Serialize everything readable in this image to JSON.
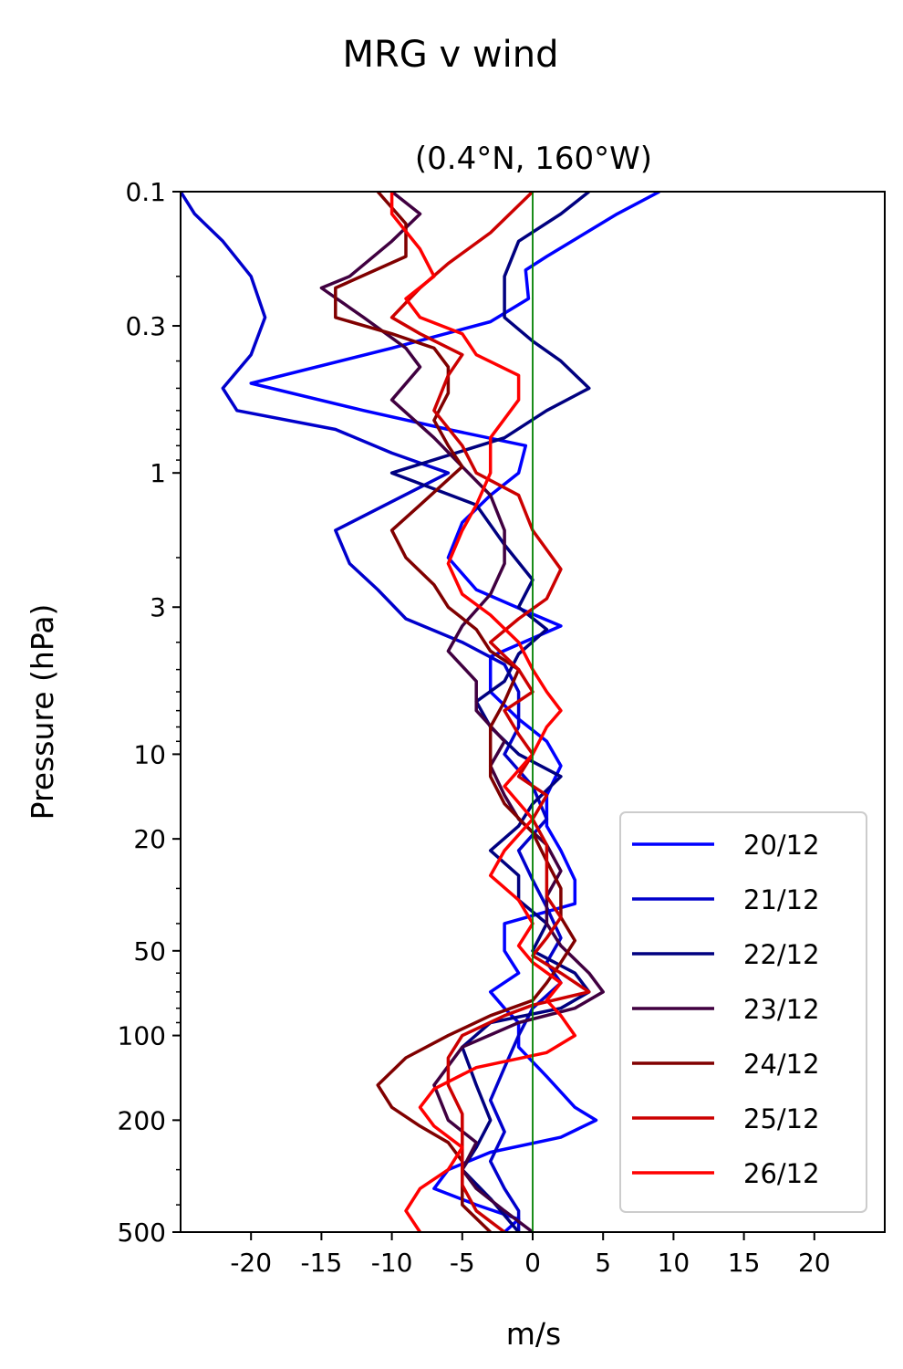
{
  "chart_data": {
    "type": "line",
    "title": "MRG v wind",
    "subtitle": "(0.4°N, 160°W)",
    "xlabel": "m/s",
    "ylabel": "Pressure (hPa)",
    "xlim": [
      -25,
      25
    ],
    "ylim": [
      500,
      0.1
    ],
    "yscale": "log",
    "x_ticks": [
      {
        "value": -20,
        "label": "-20"
      },
      {
        "value": -15,
        "label": "-15"
      },
      {
        "value": -10,
        "label": "-10"
      },
      {
        "value": -5,
        "label": "-5"
      },
      {
        "value": 0,
        "label": "0"
      },
      {
        "value": 5,
        "label": "5"
      },
      {
        "value": 10,
        "label": "10"
      },
      {
        "value": 15,
        "label": "15"
      },
      {
        "value": 20,
        "label": "20"
      }
    ],
    "y_ticks": [
      {
        "value": 0.1,
        "label": "0.1"
      },
      {
        "value": 0.3,
        "label": "0.3"
      },
      {
        "value": 1,
        "label": "1"
      },
      {
        "value": 3,
        "label": "3"
      },
      {
        "value": 10,
        "label": "10"
      },
      {
        "value": 20,
        "label": "20"
      },
      {
        "value": 50,
        "label": "50"
      },
      {
        "value": 100,
        "label": "100"
      },
      {
        "value": 200,
        "label": "200"
      },
      {
        "value": 500,
        "label": "500"
      }
    ],
    "zero_line": {
      "x": 0,
      "color": "#008000"
    },
    "legend_position": "bottom-right",
    "series": [
      {
        "name": "20/12",
        "color": "#0000ff",
        "points": [
          [
            9,
            0.1
          ],
          [
            6,
            0.12
          ],
          [
            1,
            0.17
          ],
          [
            -0.5,
            0.19
          ],
          [
            -0.3,
            0.24
          ],
          [
            -3,
            0.29
          ],
          [
            -10,
            0.36
          ],
          [
            -20,
            0.48
          ],
          [
            -12,
            0.6
          ],
          [
            -6,
            0.7
          ],
          [
            -0.5,
            0.8
          ],
          [
            -1,
            1.0
          ],
          [
            -3,
            1.2
          ],
          [
            -5,
            1.5
          ],
          [
            -6,
            2.0
          ],
          [
            -4,
            2.6
          ],
          [
            -0.5,
            3.1
          ],
          [
            2,
            3.5
          ],
          [
            -3,
            4.5
          ],
          [
            -3,
            6.0
          ],
          [
            -1,
            7.5
          ],
          [
            1,
            9.0
          ],
          [
            2,
            11
          ],
          [
            1,
            14
          ],
          [
            1,
            18
          ],
          [
            2,
            22
          ],
          [
            3,
            28
          ],
          [
            3,
            34
          ],
          [
            -2,
            40
          ],
          [
            -2,
            50
          ],
          [
            -1,
            60
          ],
          [
            -3,
            70
          ],
          [
            -2,
            80
          ],
          [
            -1,
            90
          ],
          [
            -1,
            110
          ],
          [
            1,
            140
          ],
          [
            3,
            180
          ],
          [
            4.5,
            200
          ],
          [
            2,
            230
          ],
          [
            -3,
            260
          ],
          [
            -6,
            300
          ],
          [
            -7,
            350
          ],
          [
            -4,
            400
          ],
          [
            -1,
            450
          ],
          [
            -2,
            500
          ]
        ]
      },
      {
        "name": "21/12",
        "color": "#0000cc",
        "points": [
          [
            -25,
            0.1
          ],
          [
            -24,
            0.12
          ],
          [
            -22,
            0.15
          ],
          [
            -20,
            0.2
          ],
          [
            -19,
            0.28
          ],
          [
            -20,
            0.38
          ],
          [
            -22,
            0.5
          ],
          [
            -21,
            0.6
          ],
          [
            -14,
            0.7
          ],
          [
            -10,
            0.85
          ],
          [
            -6,
            1.0
          ],
          [
            -14,
            1.6
          ],
          [
            -13,
            2.1
          ],
          [
            -11,
            2.6
          ],
          [
            -9,
            3.3
          ],
          [
            -5,
            4.0
          ],
          [
            -2,
            4.8
          ],
          [
            -1,
            6
          ],
          [
            -1,
            8
          ],
          [
            -2,
            10
          ],
          [
            0,
            13
          ],
          [
            1,
            17
          ],
          [
            -1,
            22
          ],
          [
            0,
            28
          ],
          [
            1,
            35
          ],
          [
            2,
            45
          ],
          [
            1,
            55
          ],
          [
            2,
            65
          ],
          [
            0,
            80
          ],
          [
            -1,
            100
          ],
          [
            -2,
            130
          ],
          [
            -3,
            170
          ],
          [
            -2,
            220
          ],
          [
            -3,
            280
          ],
          [
            -2,
            350
          ],
          [
            -1,
            420
          ],
          [
            -1,
            500
          ]
        ]
      },
      {
        "name": "22/12",
        "color": "#000080",
        "points": [
          [
            4,
            0.1
          ],
          [
            2,
            0.12
          ],
          [
            -1,
            0.15
          ],
          [
            -2,
            0.2
          ],
          [
            -2,
            0.28
          ],
          [
            0,
            0.34
          ],
          [
            2,
            0.4
          ],
          [
            4,
            0.5
          ],
          [
            1,
            0.6
          ],
          [
            -2,
            0.75
          ],
          [
            -10,
            1.0
          ],
          [
            -4,
            1.3
          ],
          [
            -2,
            1.8
          ],
          [
            0,
            2.4
          ],
          [
            -1,
            3.0
          ],
          [
            1,
            3.6
          ],
          [
            -1,
            4.4
          ],
          [
            -2,
            5.5
          ],
          [
            -4,
            6.5
          ],
          [
            -3,
            8
          ],
          [
            -1,
            10
          ],
          [
            2,
            12
          ],
          [
            0,
            15
          ],
          [
            -1,
            18
          ],
          [
            -3,
            22
          ],
          [
            -1,
            27
          ],
          [
            -1,
            33
          ],
          [
            1,
            40
          ],
          [
            0,
            50
          ],
          [
            3,
            60
          ],
          [
            4,
            70
          ],
          [
            2,
            80
          ],
          [
            -3,
            90
          ],
          [
            -5,
            110
          ],
          [
            -4,
            150
          ],
          [
            -3,
            200
          ],
          [
            -4,
            250
          ],
          [
            -5,
            300
          ],
          [
            -3,
            380
          ],
          [
            -1,
            500
          ]
        ]
      },
      {
        "name": "23/12",
        "color": "#400040",
        "points": [
          [
            -10,
            0.1
          ],
          [
            -8,
            0.12
          ],
          [
            -10,
            0.15
          ],
          [
            -13,
            0.2
          ],
          [
            -15,
            0.22
          ],
          [
            -12,
            0.28
          ],
          [
            -9,
            0.36
          ],
          [
            -8,
            0.42
          ],
          [
            -10,
            0.55
          ],
          [
            -7,
            0.75
          ],
          [
            -5,
            0.95
          ],
          [
            -3,
            1.2
          ],
          [
            -2,
            1.6
          ],
          [
            -2,
            2.1
          ],
          [
            -3,
            2.7
          ],
          [
            -5,
            3.5
          ],
          [
            -6,
            4.3
          ],
          [
            -4,
            5.5
          ],
          [
            -4,
            7
          ],
          [
            -2,
            9
          ],
          [
            -3,
            11
          ],
          [
            -2,
            14
          ],
          [
            -1,
            17
          ],
          [
            1,
            21
          ],
          [
            2,
            26
          ],
          [
            1,
            32
          ],
          [
            1,
            40
          ],
          [
            2,
            48
          ],
          [
            4,
            60
          ],
          [
            5,
            70
          ],
          [
            3,
            80
          ],
          [
            -1,
            90
          ],
          [
            -5,
            110
          ],
          [
            -7,
            150
          ],
          [
            -6,
            200
          ],
          [
            -4,
            240
          ],
          [
            -5,
            300
          ],
          [
            -4,
            350
          ],
          [
            -2,
            420
          ],
          [
            0,
            500
          ]
        ]
      },
      {
        "name": "24/12",
        "color": "#800000",
        "points": [
          [
            -11,
            0.1
          ],
          [
            -9,
            0.13
          ],
          [
            -9,
            0.17
          ],
          [
            -14,
            0.22
          ],
          [
            -14,
            0.28
          ],
          [
            -10,
            0.32
          ],
          [
            -7,
            0.36
          ],
          [
            -6,
            0.42
          ],
          [
            -6,
            0.52
          ],
          [
            -7,
            0.65
          ],
          [
            -6,
            0.8
          ],
          [
            -5,
            0.95
          ],
          [
            -8,
            1.3
          ],
          [
            -10,
            1.6
          ],
          [
            -9,
            2.0
          ],
          [
            -7,
            2.5
          ],
          [
            -6,
            3.0
          ],
          [
            -4,
            3.6
          ],
          [
            -3,
            4.3
          ],
          [
            -1,
            5
          ],
          [
            -2,
            6.5
          ],
          [
            -3,
            8
          ],
          [
            -3,
            10
          ],
          [
            -3,
            12
          ],
          [
            -2,
            15
          ],
          [
            0,
            19
          ],
          [
            1,
            24
          ],
          [
            2,
            30
          ],
          [
            2,
            38
          ],
          [
            3,
            46
          ],
          [
            2,
            55
          ],
          [
            1,
            65
          ],
          [
            0,
            75
          ],
          [
            -3,
            85
          ],
          [
            -6,
            100
          ],
          [
            -9,
            120
          ],
          [
            -11,
            150
          ],
          [
            -10,
            180
          ],
          [
            -8,
            210
          ],
          [
            -6,
            240
          ],
          [
            -5,
            280
          ],
          [
            -5,
            330
          ],
          [
            -5,
            400
          ],
          [
            -3,
            500
          ]
        ]
      },
      {
        "name": "25/12",
        "color": "#cc0000",
        "points": [
          [
            0,
            0.1
          ],
          [
            -3,
            0.14
          ],
          [
            -6,
            0.18
          ],
          [
            -8,
            0.22
          ],
          [
            -10,
            0.28
          ],
          [
            -8,
            0.32
          ],
          [
            -5,
            0.38
          ],
          [
            -6,
            0.45
          ],
          [
            -7,
            0.6
          ],
          [
            -5,
            0.8
          ],
          [
            -4,
            1.0
          ],
          [
            -1,
            1.2
          ],
          [
            0,
            1.6
          ],
          [
            2,
            2.2
          ],
          [
            1,
            2.8
          ],
          [
            -1,
            3.3
          ],
          [
            -3,
            4
          ],
          [
            -1,
            5
          ],
          [
            0,
            6
          ],
          [
            -2,
            7
          ],
          [
            -1,
            8.5
          ],
          [
            0,
            10
          ],
          [
            -1,
            12
          ],
          [
            1,
            14
          ],
          [
            0,
            17
          ],
          [
            1,
            21
          ],
          [
            1,
            26
          ],
          [
            1,
            32
          ],
          [
            2,
            38
          ],
          [
            1,
            45
          ],
          [
            0,
            52
          ],
          [
            2,
            60
          ],
          [
            4,
            70
          ],
          [
            0,
            78
          ],
          [
            -2,
            85
          ],
          [
            -5,
            100
          ],
          [
            -6,
            120
          ],
          [
            -6,
            150
          ],
          [
            -5,
            190
          ],
          [
            -5,
            230
          ],
          [
            -5,
            280
          ],
          [
            -5,
            340
          ],
          [
            -4,
            420
          ],
          [
            -2,
            500
          ]
        ]
      },
      {
        "name": "26/12",
        "color": "#ff0000",
        "points": [
          [
            -10,
            0.1
          ],
          [
            -10,
            0.12
          ],
          [
            -8,
            0.16
          ],
          [
            -7,
            0.2
          ],
          [
            -9,
            0.24
          ],
          [
            -8,
            0.28
          ],
          [
            -5,
            0.32
          ],
          [
            -4,
            0.38
          ],
          [
            -1,
            0.45
          ],
          [
            -1,
            0.55
          ],
          [
            -3,
            0.75
          ],
          [
            -3,
            1.0
          ],
          [
            -4,
            1.3
          ],
          [
            -5,
            1.6
          ],
          [
            -6,
            2.1
          ],
          [
            -5,
            2.7
          ],
          [
            -3,
            3.2
          ],
          [
            -1,
            4
          ],
          [
            0,
            5
          ],
          [
            1,
            6
          ],
          [
            2,
            7
          ],
          [
            1,
            8
          ],
          [
            0,
            10
          ],
          [
            -2,
            13
          ],
          [
            0,
            17
          ],
          [
            -2,
            22
          ],
          [
            -3,
            27
          ],
          [
            -1,
            33
          ],
          [
            0,
            40
          ],
          [
            -1,
            48
          ],
          [
            0,
            55
          ],
          [
            2,
            65
          ],
          [
            1,
            75
          ],
          [
            2,
            85
          ],
          [
            3,
            100
          ],
          [
            1,
            115
          ],
          [
            -4,
            130
          ],
          [
            -7,
            155
          ],
          [
            -8,
            180
          ],
          [
            -7,
            210
          ],
          [
            -5,
            250
          ],
          [
            -6,
            300
          ],
          [
            -8,
            350
          ],
          [
            -9,
            420
          ],
          [
            -8,
            500
          ]
        ]
      }
    ]
  }
}
